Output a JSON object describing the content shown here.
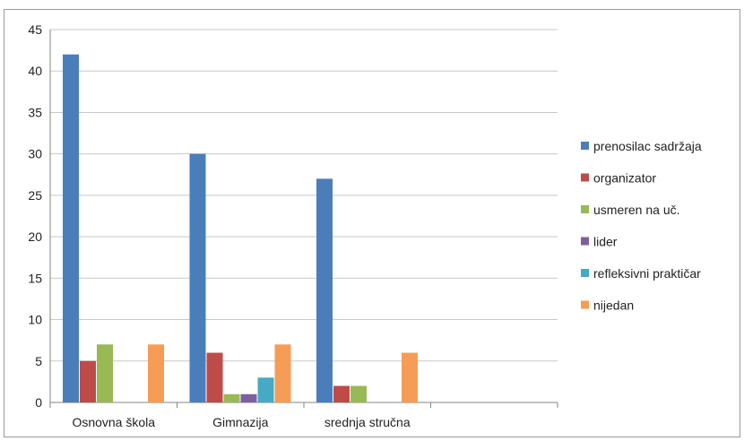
{
  "chart_data": {
    "type": "bar",
    "categories": [
      "Osnovna škola",
      "Gimnazija",
      "srednja stručna"
    ],
    "series": [
      {
        "name": "prenosilac sadržaja",
        "values": [
          42,
          30,
          27
        ],
        "color": "#4a7ebb"
      },
      {
        "name": "organizator",
        "values": [
          5,
          6,
          2
        ],
        "color": "#be4b48"
      },
      {
        "name": "usmeren na uč.",
        "values": [
          7,
          1,
          2
        ],
        "color": "#98b954"
      },
      {
        "name": "lider",
        "values": [
          0,
          1,
          0
        ],
        "color": "#7d60a0"
      },
      {
        "name": "refleksivni praktičar",
        "values": [
          0,
          3,
          0
        ],
        "color": "#46aac5"
      },
      {
        "name": "nijedan",
        "values": [
          7,
          7,
          6
        ],
        "color": "#f59d56"
      }
    ],
    "y_ticks": [
      0,
      5,
      10,
      15,
      20,
      25,
      30,
      35,
      40,
      45
    ],
    "ylim": [
      0,
      45
    ],
    "grid": true,
    "legend_position": "right",
    "empty_slot_count": 1,
    "title": "",
    "xlabel": "",
    "ylabel": ""
  }
}
